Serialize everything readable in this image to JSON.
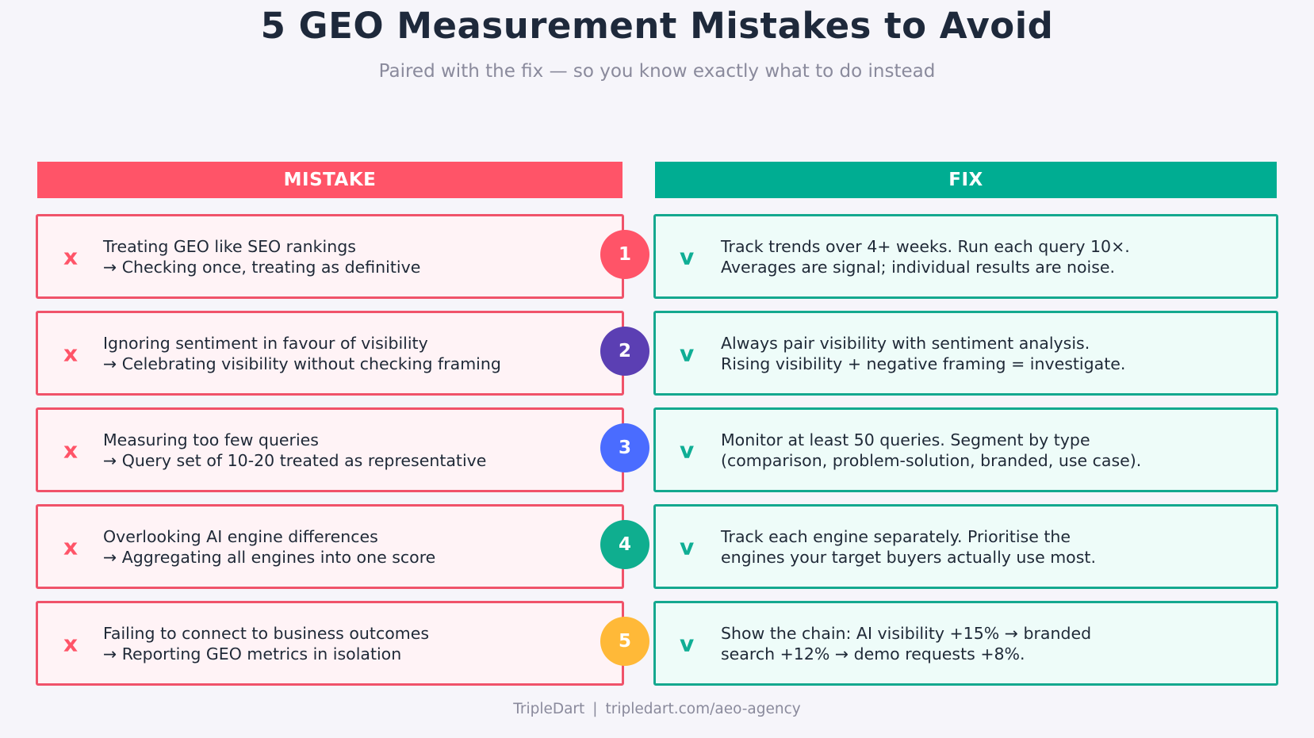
{
  "title": "5 GEO Measurement Mistakes to Avoid",
  "subtitle": "Paired with the fix — so you know exactly what to do instead",
  "headers": {
    "mistake": "MISTAKE",
    "fix": "FIX"
  },
  "marks": {
    "mistake": "x",
    "fix": "v"
  },
  "colors": {
    "mistake": "#ff5468",
    "fix": "#00ad92",
    "badge_1": "#ff5468",
    "badge_2": "#5b3fb3",
    "badge_3": "#4a6cff",
    "badge_4": "#0fae8f",
    "badge_5": "#ffb938"
  },
  "rows": [
    {
      "number": "1",
      "badge_color": "#ff5468",
      "mistake_line1": "Treating GEO like SEO rankings",
      "mistake_line2": "→ Checking once, treating as definitive",
      "fix_line1": "Track trends over 4+ weeks. Run each query 10×.",
      "fix_line2": "Averages are signal; individual results are noise."
    },
    {
      "number": "2",
      "badge_color": "#5b3fb3",
      "mistake_line1": "Ignoring sentiment in favour of visibility",
      "mistake_line2": "→ Celebrating visibility without checking framing",
      "fix_line1": "Always pair visibility with sentiment analysis.",
      "fix_line2": "Rising visibility + negative framing = investigate."
    },
    {
      "number": "3",
      "badge_color": "#4a6cff",
      "mistake_line1": "Measuring too few queries",
      "mistake_line2": "→ Query set of 10-20 treated as representative",
      "fix_line1": "Monitor at least 50 queries. Segment by type",
      "fix_line2": "(comparison, problem-solution, branded, use case)."
    },
    {
      "number": "4",
      "badge_color": "#0fae8f",
      "mistake_line1": "Overlooking AI engine differences",
      "mistake_line2": "→ Aggregating all engines into one score",
      "fix_line1": "Track each engine separately. Prioritise the",
      "fix_line2": "engines your target buyers actually use most."
    },
    {
      "number": "5",
      "badge_color": "#ffb938",
      "mistake_line1": "Failing to connect to business outcomes",
      "mistake_line2": "→ Reporting GEO metrics in isolation",
      "fix_line1": "Show the chain: AI visibility +15% → branded",
      "fix_line2": "search +12% → demo requests +8%."
    }
  ],
  "footer": {
    "brand": "TripleDart",
    "separator": "|",
    "url": "tripledart.com/aeo-agency"
  }
}
